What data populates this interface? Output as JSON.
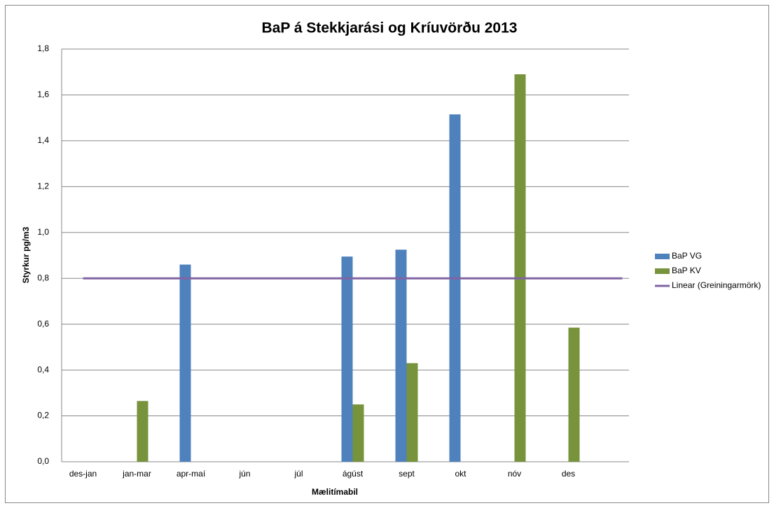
{
  "chart_data": {
    "type": "bar",
    "title": "BaP á Stekkjarási og Kríuvörðu 2013",
    "x_label": "Mælitímabil",
    "y_label": "Styrkur pg/m3",
    "categories": [
      "des-jan",
      "jan-mar",
      "apr-maí",
      "jún",
      "júl",
      "ágúst",
      "sept",
      "okt",
      "nóv",
      "des",
      null
    ],
    "series": [
      {
        "name": "BaP VG",
        "color": "#4f81bd",
        "values": [
          null,
          null,
          0.86,
          null,
          null,
          0.895,
          0.925,
          1.515,
          null,
          null,
          null
        ]
      },
      {
        "name": "BaP KV",
        "color": "#77933c",
        "values": [
          null,
          0.265,
          null,
          null,
          null,
          0.25,
          0.43,
          null,
          1.69,
          0.585,
          null
        ]
      },
      {
        "name": "Linear (Greiningarmörk)",
        "color": "#8064a2",
        "type": "line",
        "values": [
          0.8,
          0.8,
          0.8,
          0.8,
          0.8,
          0.8,
          0.8,
          0.8,
          0.8,
          0.8,
          0.8
        ]
      }
    ],
    "ylim": [
      0,
      1.8
    ],
    "yticks": [
      {
        "value": 0,
        "label": "0,0"
      },
      {
        "value": 0.2,
        "label": "0,2"
      },
      {
        "value": 0.4,
        "label": "0,4"
      },
      {
        "value": 0.6,
        "label": "0,6"
      },
      {
        "value": 0.8,
        "label": "0,8"
      },
      {
        "value": 1.0,
        "label": "1,0"
      },
      {
        "value": 1.2,
        "label": "1,2"
      },
      {
        "value": 1.4,
        "label": "1,4"
      },
      {
        "value": 1.6,
        "label": "1,6"
      },
      {
        "value": 1.8,
        "label": "1,8"
      }
    ],
    "grid": true,
    "legend": "right"
  }
}
